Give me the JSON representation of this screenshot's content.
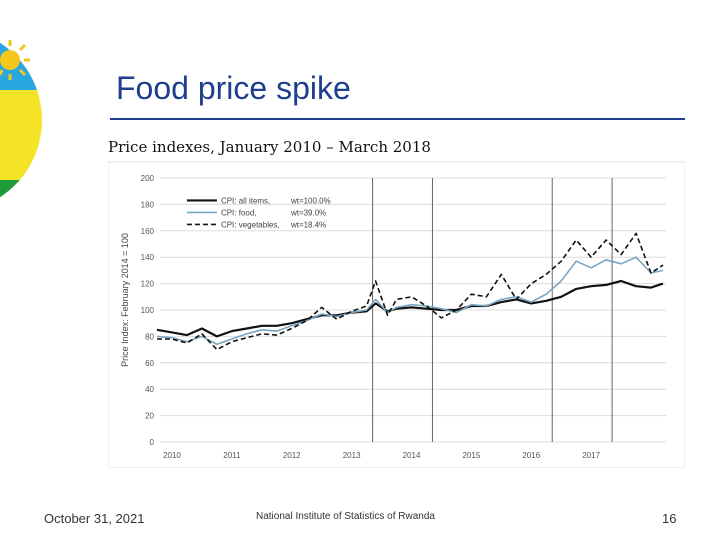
{
  "slide": {
    "title": "Food price spike",
    "footer_date": "October 31, 2021",
    "footer_org": "National Institute of Statistics of Rwanda",
    "page_number": "16",
    "accent_color": "#1f3e8f"
  },
  "chart_data": {
    "type": "line",
    "title": "Price indexes, January 2010 – March 2018",
    "ylabel": "Price Index: February 2014 = 100",
    "ylim": [
      0,
      200
    ],
    "yticks": [
      0,
      20,
      40,
      60,
      80,
      100,
      120,
      140,
      160,
      180,
      200
    ],
    "xlim": [
      2009.8,
      2018.25
    ],
    "xticks": [
      {
        "label": "2010",
        "value": 2010
      },
      {
        "label": "2011",
        "value": 2011
      },
      {
        "label": "2012",
        "value": 2012
      },
      {
        "label": "2013",
        "value": 2013
      },
      {
        "label": "2014",
        "value": 2014
      },
      {
        "label": "2015",
        "value": 2015
      },
      {
        "label": "2016",
        "value": 2016
      },
      {
        "label": "2017",
        "value": 2017
      }
    ],
    "vertical_lines": [
      2013.35,
      2014.35,
      2016.35,
      2017.35
    ],
    "grid": true,
    "legend_position": "top-left",
    "series": [
      {
        "name": "CPI: all items,",
        "weight": "wt=100.0%",
        "color": "#111111",
        "style": "solid",
        "x": [
          2009.75,
          2010.0,
          2010.25,
          2010.5,
          2010.75,
          2011.0,
          2011.25,
          2011.5,
          2011.75,
          2012.0,
          2012.25,
          2012.5,
          2012.75,
          2013.0,
          2013.25,
          2013.4,
          2013.6,
          2013.75,
          2014.0,
          2014.25,
          2014.5,
          2014.75,
          2015.0,
          2015.25,
          2015.5,
          2015.75,
          2016.0,
          2016.25,
          2016.5,
          2016.75,
          2017.0,
          2017.25,
          2017.5,
          2017.75,
          2018.0,
          2018.2
        ],
        "y": [
          85,
          83,
          81,
          86,
          80,
          84,
          86,
          88,
          88,
          90,
          93,
          96,
          96,
          98,
          99,
          105,
          99,
          101,
          102,
          101,
          100,
          100,
          103,
          103,
          106,
          108,
          105,
          107,
          110,
          116,
          118,
          119,
          122,
          118,
          117,
          120
        ]
      },
      {
        "name": "CPI: food,",
        "weight": "wt=39.0%",
        "color": "#7aa6c2",
        "style": "solid",
        "x": [
          2009.75,
          2010.0,
          2010.25,
          2010.5,
          2010.75,
          2011.0,
          2011.25,
          2011.5,
          2011.75,
          2012.0,
          2012.25,
          2012.5,
          2012.75,
          2013.0,
          2013.25,
          2013.4,
          2013.6,
          2013.75,
          2014.0,
          2014.25,
          2014.5,
          2014.75,
          2015.0,
          2015.25,
          2015.5,
          2015.75,
          2016.0,
          2016.25,
          2016.5,
          2016.75,
          2017.0,
          2017.25,
          2017.5,
          2017.75,
          2018.0,
          2018.2
        ],
        "y": [
          80,
          79,
          76,
          80,
          74,
          78,
          82,
          85,
          84,
          88,
          92,
          97,
          95,
          98,
          100,
          108,
          98,
          102,
          104,
          103,
          101,
          98,
          104,
          103,
          108,
          110,
          106,
          112,
          122,
          137,
          132,
          138,
          135,
          140,
          128,
          130
        ]
      },
      {
        "name": "CPI: vegetables,",
        "weight": "wt=18.4%",
        "color": "#111111",
        "style": "dashed",
        "x": [
          2009.75,
          2010.0,
          2010.25,
          2010.5,
          2010.75,
          2011.0,
          2011.25,
          2011.5,
          2011.75,
          2012.0,
          2012.25,
          2012.5,
          2012.75,
          2013.0,
          2013.25,
          2013.4,
          2013.6,
          2013.75,
          2014.0,
          2014.25,
          2014.5,
          2014.75,
          2015.0,
          2015.25,
          2015.5,
          2015.75,
          2016.0,
          2016.25,
          2016.5,
          2016.75,
          2017.0,
          2017.25,
          2017.5,
          2017.75,
          2018.0,
          2018.2
        ],
        "y": [
          78,
          78,
          75,
          82,
          70,
          76,
          79,
          82,
          81,
          86,
          92,
          102,
          93,
          99,
          103,
          122,
          96,
          108,
          110,
          103,
          94,
          100,
          112,
          110,
          127,
          108,
          120,
          127,
          137,
          153,
          140,
          153,
          142,
          158,
          128,
          134
        ]
      }
    ]
  }
}
